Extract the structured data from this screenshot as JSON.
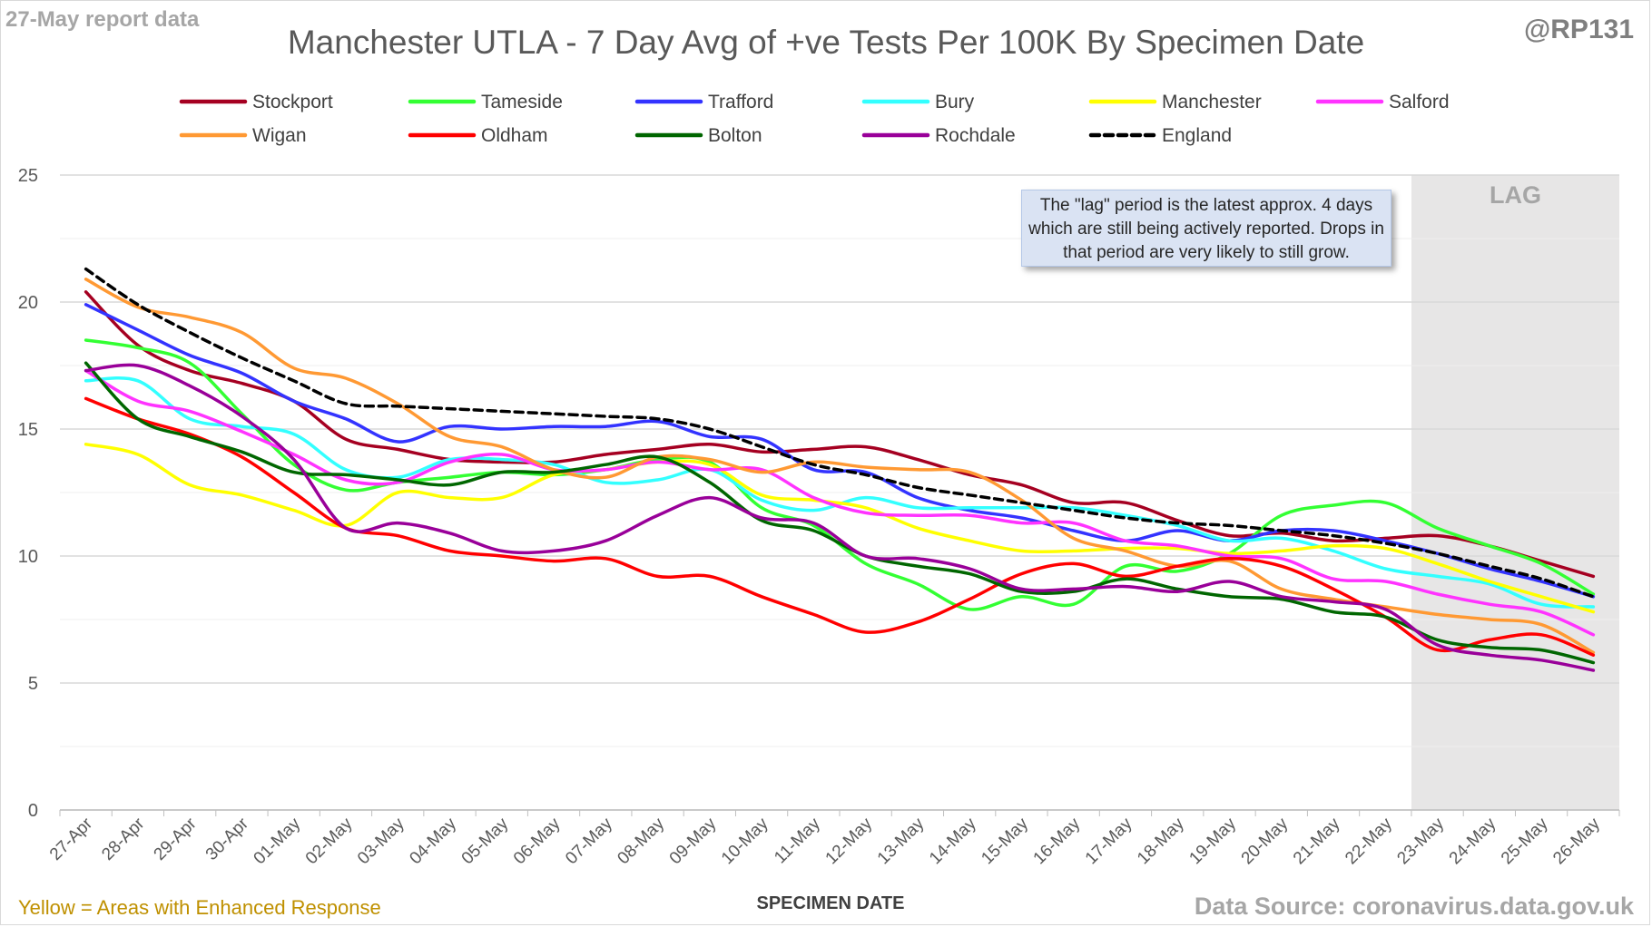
{
  "header": {
    "report_date": "27-May report data",
    "handle": "@RP131",
    "title": "Manchester UTLA - 7 Day Avg of +ve Tests Per 100K By Specimen Date"
  },
  "footer": {
    "left_note": "Yellow = Areas with Enhanced Response",
    "source": "Data Source: coronavirus.data.gov.uk"
  },
  "annotation": {
    "lag_label": "LAG",
    "note": "The \"lag\" period is the latest approx. 4 days which are still being actively reported. Drops in that period are very likely to still grow."
  },
  "chart_data": {
    "type": "line",
    "title": "Manchester UTLA - 7 Day Avg of +ve Tests Per 100K By Specimen Date",
    "xlabel": "SPECIMEN DATE",
    "ylabel": "",
    "ylim": [
      0,
      25
    ],
    "yticks": [
      0,
      5,
      10,
      15,
      20,
      25
    ],
    "grid": true,
    "legend_position": "top",
    "lag_region_categories": [
      "23-May",
      "24-May",
      "25-May",
      "26-May"
    ],
    "categories": [
      "27-Apr",
      "28-Apr",
      "29-Apr",
      "30-Apr",
      "01-May",
      "02-May",
      "03-May",
      "04-May",
      "05-May",
      "06-May",
      "07-May",
      "08-May",
      "09-May",
      "10-May",
      "11-May",
      "12-May",
      "13-May",
      "14-May",
      "15-May",
      "16-May",
      "17-May",
      "18-May",
      "19-May",
      "20-May",
      "21-May",
      "22-May",
      "23-May",
      "24-May",
      "25-May",
      "26-May"
    ],
    "series": [
      {
        "name": "Stockport",
        "color": "#a50021",
        "dash": false,
        "values": [
          20.4,
          18.3,
          17.3,
          16.8,
          16.1,
          14.6,
          14.2,
          13.8,
          13.7,
          13.7,
          14.0,
          14.2,
          14.4,
          14.1,
          14.2,
          14.3,
          13.8,
          13.2,
          12.8,
          12.1,
          12.1,
          11.4,
          10.8,
          10.9,
          10.6,
          10.7,
          10.8,
          10.4,
          9.8,
          9.2
        ]
      },
      {
        "name": "Tameside",
        "color": "#33ff33",
        "dash": false,
        "values": [
          18.5,
          18.2,
          17.6,
          15.6,
          13.6,
          12.6,
          12.9,
          13.1,
          13.3,
          13.2,
          13.4,
          13.8,
          13.7,
          11.9,
          11.2,
          9.7,
          8.9,
          7.9,
          8.4,
          8.1,
          9.6,
          9.4,
          10.1,
          11.6,
          12.0,
          12.1,
          11.1,
          10.4,
          9.7,
          8.5
        ]
      },
      {
        "name": "Trafford",
        "color": "#3333ff",
        "dash": false,
        "values": [
          19.9,
          18.9,
          17.9,
          17.2,
          16.1,
          15.4,
          14.5,
          15.1,
          15.0,
          15.1,
          15.1,
          15.3,
          14.7,
          14.6,
          13.4,
          13.3,
          12.3,
          11.8,
          11.5,
          11.0,
          10.6,
          11.0,
          10.6,
          11.0,
          11.0,
          10.6,
          10.1,
          9.5,
          9.0,
          8.4
        ]
      },
      {
        "name": "Bury",
        "color": "#33ffff",
        "dash": false,
        "values": [
          16.9,
          16.9,
          15.4,
          15.1,
          14.8,
          13.4,
          13.1,
          13.8,
          13.8,
          13.6,
          12.9,
          13.0,
          13.4,
          12.2,
          11.8,
          12.3,
          11.9,
          11.9,
          11.9,
          11.9,
          11.6,
          11.2,
          10.6,
          10.7,
          10.2,
          9.5,
          9.2,
          8.9,
          8.1,
          8.0
        ]
      },
      {
        "name": "Manchester",
        "color": "#ffff00",
        "dash": false,
        "values": [
          14.4,
          14.0,
          12.8,
          12.4,
          11.8,
          11.2,
          12.5,
          12.3,
          12.3,
          13.2,
          13.4,
          13.7,
          13.6,
          12.4,
          12.2,
          11.9,
          11.1,
          10.6,
          10.2,
          10.2,
          10.3,
          10.3,
          10.1,
          10.2,
          10.4,
          10.3,
          9.7,
          9.0,
          8.4,
          7.8
        ]
      },
      {
        "name": "Salford",
        "color": "#ff33ff",
        "dash": false,
        "values": [
          17.3,
          16.1,
          15.7,
          14.9,
          14.0,
          13.0,
          12.9,
          13.7,
          14.0,
          13.4,
          13.4,
          13.7,
          13.4,
          13.4,
          12.3,
          11.7,
          11.6,
          11.6,
          11.3,
          11.3,
          10.6,
          10.4,
          10.0,
          9.9,
          9.1,
          9.0,
          8.5,
          8.1,
          7.8,
          6.9
        ]
      },
      {
        "name": "Wigan",
        "color": "#ff9933",
        "dash": false,
        "values": [
          20.9,
          19.8,
          19.4,
          18.8,
          17.4,
          17.0,
          16.0,
          14.7,
          14.3,
          13.4,
          13.1,
          13.9,
          13.8,
          13.3,
          13.7,
          13.5,
          13.4,
          13.3,
          12.2,
          10.7,
          10.2,
          9.6,
          9.8,
          8.7,
          8.3,
          8.0,
          7.7,
          7.5,
          7.3,
          6.2
        ]
      },
      {
        "name": "Oldham",
        "color": "#ff0000",
        "dash": false,
        "values": [
          16.2,
          15.4,
          14.8,
          13.9,
          12.5,
          11.1,
          10.8,
          10.2,
          10.0,
          9.8,
          9.9,
          9.2,
          9.2,
          8.4,
          7.7,
          7.0,
          7.4,
          8.3,
          9.3,
          9.7,
          9.2,
          9.6,
          9.9,
          9.6,
          8.7,
          7.6,
          6.3,
          6.7,
          6.9,
          6.1
        ]
      },
      {
        "name": "Bolton",
        "color": "#006600",
        "dash": false,
        "values": [
          17.6,
          15.4,
          14.7,
          14.1,
          13.3,
          13.2,
          13.0,
          12.8,
          13.3,
          13.3,
          13.6,
          13.9,
          12.9,
          11.4,
          11.0,
          10.0,
          9.6,
          9.3,
          8.6,
          8.6,
          9.1,
          8.7,
          8.4,
          8.3,
          7.8,
          7.6,
          6.7,
          6.4,
          6.3,
          5.8
        ]
      },
      {
        "name": "Rochdale",
        "color": "#990099",
        "dash": false,
        "values": [
          17.3,
          17.5,
          16.7,
          15.5,
          13.8,
          11.1,
          11.3,
          10.9,
          10.2,
          10.2,
          10.6,
          11.6,
          12.3,
          11.5,
          11.3,
          10.0,
          9.9,
          9.5,
          8.7,
          8.7,
          8.8,
          8.6,
          9.0,
          8.4,
          8.2,
          7.9,
          6.5,
          6.1,
          5.9,
          5.5
        ]
      },
      {
        "name": "England",
        "color": "#000000",
        "dash": true,
        "values": [
          21.3,
          19.9,
          18.8,
          17.8,
          16.9,
          16.0,
          15.9,
          15.8,
          15.7,
          15.6,
          15.5,
          15.4,
          15.0,
          14.3,
          13.6,
          13.2,
          12.7,
          12.4,
          12.1,
          11.8,
          11.5,
          11.3,
          11.2,
          11.0,
          10.8,
          10.5,
          10.1,
          9.6,
          9.1,
          8.4
        ]
      }
    ]
  }
}
